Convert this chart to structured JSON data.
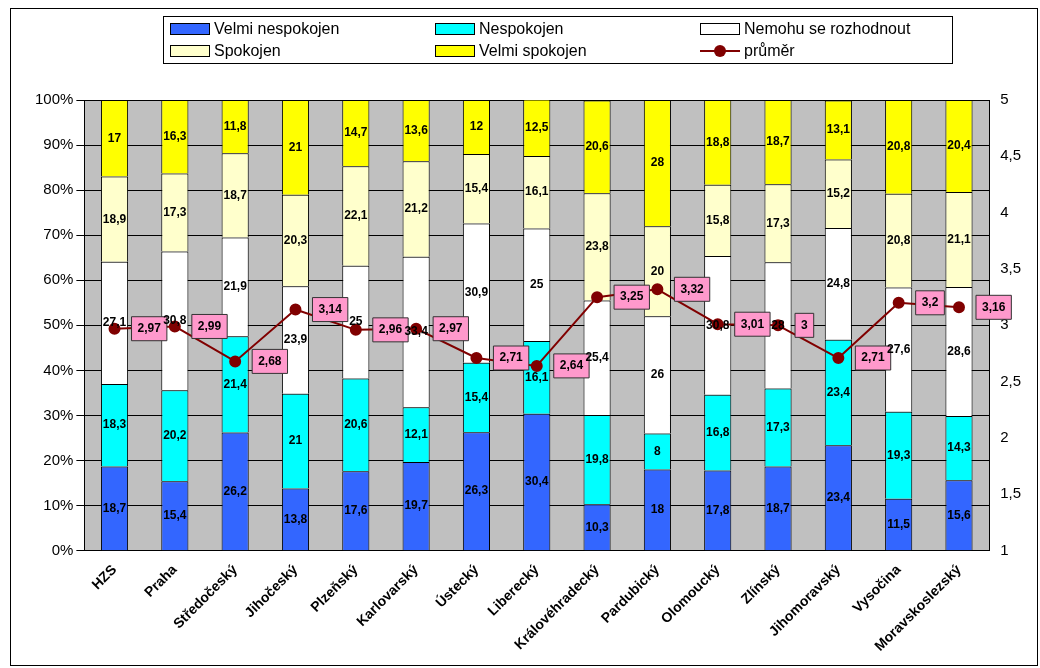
{
  "chart_data": {
    "type": "bar",
    "stacked": true,
    "categories": [
      "HZS",
      "Praha",
      "Středočeský",
      "Jihočeský",
      "Plzeňský",
      "Karlovarský",
      "Ústecký",
      "Liberecký",
      "Královéhradecký",
      "Pardubický",
      "Olomoucký",
      "Zlínský",
      "Jihomoravský",
      "Vysočina",
      "Moravskoslezský"
    ],
    "series": [
      {
        "name": "Velmi nespokojen",
        "color": "#3366ff",
        "values": [
          18.7,
          15.4,
          26.2,
          13.8,
          17.6,
          19.7,
          26.3,
          30.4,
          10.3,
          18,
          17.8,
          18.7,
          23.4,
          11.5,
          15.6
        ],
        "value_labels": [
          "18,7",
          "15,4",
          "26,2",
          "13,8",
          "17,6",
          "19,7",
          "26,3",
          "30,4",
          "10,3",
          "18",
          "17,8",
          "18,7",
          "23,4",
          "11,5",
          "15,6"
        ]
      },
      {
        "name": "Nespokojen",
        "color": "#00ffff",
        "values": [
          18.3,
          20.2,
          21.4,
          21,
          20.6,
          12.1,
          15.4,
          16.1,
          19.8,
          8,
          16.8,
          17.3,
          23.4,
          19.3,
          14.3
        ],
        "value_labels": [
          "18,3",
          "20,2",
          "21,4",
          "21",
          "20,6",
          "12,1",
          "15,4",
          "16,1",
          "19,8",
          "8",
          "16,8",
          "17,3",
          "23,4",
          "19,3",
          "14,3"
        ]
      },
      {
        "name": "Nemohu se rozhodnout",
        "color": "#ffffff",
        "values": [
          27.1,
          30.8,
          21.9,
          23.9,
          25,
          33.4,
          30.9,
          25,
          25.4,
          26,
          30.8,
          28,
          24.8,
          27.6,
          28.6
        ],
        "value_labels": [
          "27,1",
          "30,8",
          "21,9",
          "23,9",
          "25",
          "33,4",
          "30,9",
          "25",
          "25,4",
          "26",
          "30,8",
          "28",
          "24,8",
          "27,6",
          "28,6"
        ]
      },
      {
        "name": "Spokojen",
        "color": "#ffffcc",
        "values": [
          18.9,
          17.3,
          18.7,
          20.3,
          22.1,
          21.2,
          15.4,
          16.1,
          23.8,
          20,
          15.8,
          17.3,
          15.2,
          20.8,
          21.1
        ],
        "value_labels": [
          "18,9",
          "17,3",
          "18,7",
          "20,3",
          "22,1",
          "21,2",
          "15,4",
          "16,1",
          "23,8",
          "20",
          "15,8",
          "17,3",
          "15,2",
          "20,8",
          "21,1"
        ]
      },
      {
        "name": "Velmi spokojen",
        "color": "#ffff00",
        "values": [
          17,
          16.3,
          11.8,
          21,
          14.7,
          13.6,
          12,
          12.5,
          20.6,
          28,
          18.8,
          18.7,
          13.1,
          20.8,
          20.4
        ],
        "value_labels": [
          "17",
          "16,3",
          "11,8",
          "21",
          "14,7",
          "13,6",
          "12",
          "12,5",
          "20,6",
          "28",
          "18,8",
          "18,7",
          "13,1",
          "20,8",
          "20,4"
        ]
      },
      {
        "name": "průměr",
        "type": "line",
        "axis": "y2",
        "color": "#800000",
        "marker": "circle",
        "values": [
          2.97,
          2.99,
          2.68,
          3.14,
          2.96,
          2.97,
          2.71,
          2.64,
          3.25,
          3.32,
          3.01,
          3,
          2.71,
          3.2,
          3.16
        ],
        "value_labels": [
          "2,97",
          "2,99",
          "2,68",
          "3,14",
          "2,96",
          "2,97",
          "2,71",
          "2,64",
          "3,25",
          "3,32",
          "3,01",
          "3",
          "2,71",
          "3,2",
          "3,16"
        ]
      }
    ],
    "ylim": [
      0,
      100
    ],
    "yticks": [
      {
        "value": 0,
        "label": "0%"
      },
      {
        "value": 10,
        "label": "10%"
      },
      {
        "value": 20,
        "label": "20%"
      },
      {
        "value": 30,
        "label": "30%"
      },
      {
        "value": 40,
        "label": "40%"
      },
      {
        "value": 50,
        "label": "50%"
      },
      {
        "value": 60,
        "label": "60%"
      },
      {
        "value": 70,
        "label": "70%"
      },
      {
        "value": 80,
        "label": "80%"
      },
      {
        "value": 90,
        "label": "90%"
      },
      {
        "value": 100,
        "label": "100%"
      }
    ],
    "y2lim": [
      1,
      5
    ],
    "y2ticks": [
      1,
      {
        "value": 1.5,
        "label": "1,5"
      },
      2,
      {
        "value": 2.5,
        "label": "2,5"
      },
      3,
      {
        "value": 3.5,
        "label": "3,5"
      },
      4,
      {
        "value": 4.5,
        "label": "4,5"
      },
      5
    ],
    "grid": "y",
    "legend": "top"
  }
}
